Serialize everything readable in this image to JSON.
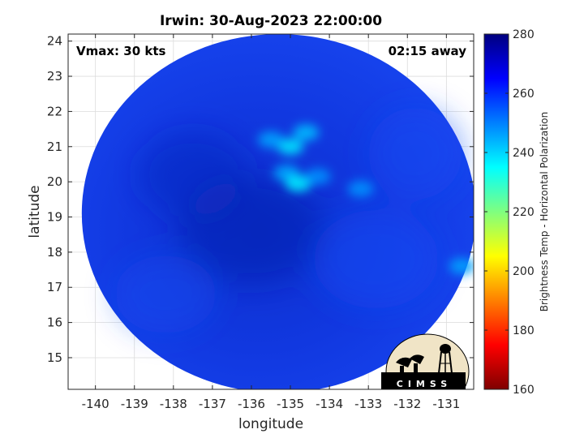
{
  "chart_data": {
    "type": "heatmap",
    "title": "Irwin: 30-Aug-2023 22:00:00",
    "xlabel": "longitude",
    "ylabel": "latitude",
    "xlim": [
      -140.7,
      -130.3
    ],
    "ylim": [
      14.1,
      24.2
    ],
    "x_ticks": [
      -140,
      -139,
      -138,
      -137,
      -136,
      -135,
      -134,
      -133,
      -132,
      -131
    ],
    "y_ticks": [
      15,
      16,
      17,
      18,
      19,
      20,
      21,
      22,
      23,
      24
    ],
    "grid": true,
    "annotations": {
      "vmax": "Vmax: 30 kts",
      "time_away": "02:15 away"
    },
    "colorbar": {
      "label": "Brightness Temp - Horizontal Polarization",
      "range": [
        160,
        280
      ],
      "ticks": [
        160,
        180,
        200,
        220,
        240,
        260,
        280
      ],
      "colormap": "jet"
    },
    "swath": {
      "center": [
        -135.3,
        19.1
      ],
      "radius_lon": 5.05,
      "radius_lat": 5.1,
      "background_value": 262,
      "cold_cloud_features": [
        {
          "lon": -135.0,
          "lat": 21.0,
          "value": 238
        },
        {
          "lon": -134.6,
          "lat": 21.4,
          "value": 243
        },
        {
          "lon": -135.5,
          "lat": 21.2,
          "value": 246
        },
        {
          "lon": -135.1,
          "lat": 20.25,
          "value": 245
        },
        {
          "lon": -134.8,
          "lat": 19.95,
          "value": 237
        },
        {
          "lon": -134.3,
          "lat": 20.15,
          "value": 248
        },
        {
          "lon": -133.2,
          "lat": 19.8,
          "value": 248
        },
        {
          "lon": -130.6,
          "lat": 17.6,
          "value": 246
        }
      ]
    }
  },
  "logo": {
    "text": "CIMSS"
  }
}
